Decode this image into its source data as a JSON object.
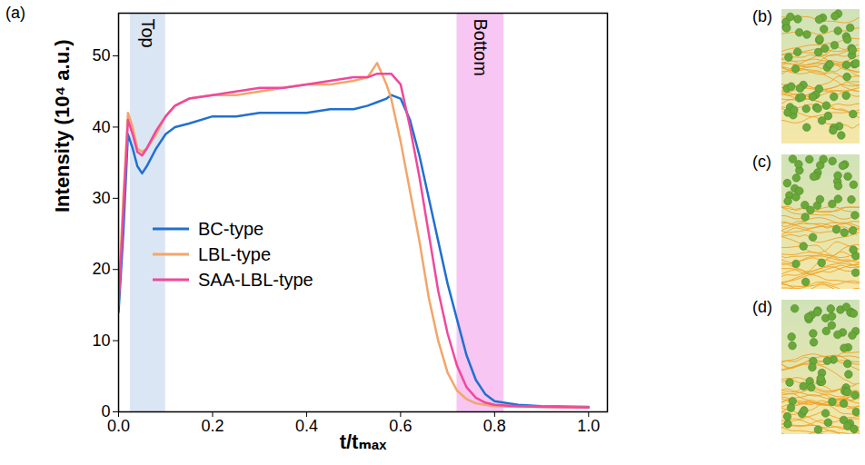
{
  "chart_data": {
    "type": "line",
    "panel_label": "(a)",
    "x_label": "t/tₘₐₓ",
    "y_label": "Intensity (10⁴ a.u.)",
    "x": [
      0,
      0.01,
      0.02,
      0.03,
      0.04,
      0.05,
      0.06,
      0.08,
      0.1,
      0.12,
      0.15,
      0.2,
      0.25,
      0.3,
      0.35,
      0.4,
      0.45,
      0.5,
      0.53,
      0.55,
      0.57,
      0.58,
      0.6,
      0.62,
      0.64,
      0.66,
      0.68,
      0.7,
      0.72,
      0.74,
      0.76,
      0.78,
      0.8,
      0.85,
      0.9,
      1.0
    ],
    "series": [
      {
        "name": "BC-type",
        "color": "#2070d0",
        "values": [
          14,
          25,
          39,
          37,
          34.5,
          33.5,
          34.5,
          37,
          39,
          40,
          40.5,
          41.5,
          41.5,
          42,
          42,
          42,
          42.5,
          42.5,
          43,
          43.5,
          44,
          44.5,
          44,
          41,
          36,
          30,
          24,
          18,
          13,
          8,
          4.5,
          2.5,
          1.5,
          1,
          0.8,
          0.7
        ]
      },
      {
        "name": "LBL-type",
        "color": "#f2a66a",
        "values": [
          16,
          30,
          42,
          40,
          37,
          36.5,
          37,
          39,
          41.5,
          43,
          44,
          44.5,
          44.5,
          45,
          45.5,
          46,
          46,
          46.5,
          47,
          49,
          46,
          44,
          38,
          31,
          24,
          16,
          10,
          5.5,
          3,
          1.8,
          1.2,
          1,
          0.8,
          0.7,
          0.7,
          0.6
        ]
      },
      {
        "name": "SAA-LBL-type",
        "color": "#f0489c",
        "values": [
          15,
          28,
          41,
          39,
          36.5,
          36,
          37,
          39.5,
          41.5,
          43,
          44,
          44.5,
          45,
          45.5,
          45.5,
          46,
          46.5,
          47,
          47,
          47.5,
          47.5,
          47.5,
          46,
          40,
          33,
          25,
          17,
          11,
          6.5,
          3.5,
          2,
          1.3,
          1,
          0.8,
          0.7,
          0.6
        ]
      }
    ],
    "annotations": [
      {
        "text": "Top",
        "x_start": 0.025,
        "x_end": 0.1,
        "color": "#dbe6f5"
      },
      {
        "text": "Bottom",
        "x_start": 0.72,
        "x_end": 0.82,
        "color": "#f7c6f3"
      }
    ],
    "xlim": [
      0,
      1.04
    ],
    "xticks": [
      {
        "value": 0,
        "label": "0.0"
      },
      0.2,
      0.4,
      0.6,
      0.8,
      {
        "value": 1,
        "label": "1.0"
      }
    ],
    "ylim": [
      0,
      56
    ],
    "yticks": [
      0,
      10,
      20,
      30,
      40,
      50
    ],
    "grid": false,
    "legend": "left"
  },
  "schematics": [
    {
      "panel_label": "(b)"
    },
    {
      "panel_label": "(c)"
    },
    {
      "panel_label": "(d)"
    }
  ]
}
